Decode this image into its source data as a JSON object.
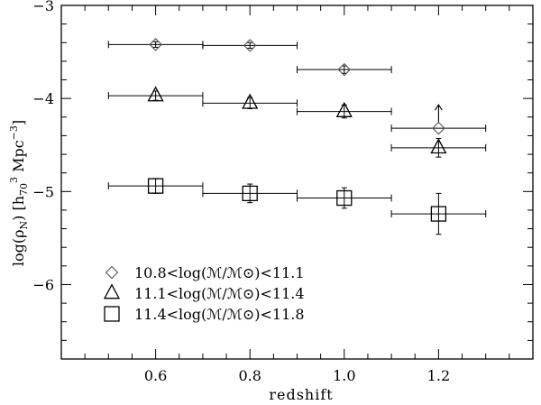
{
  "chart_data": {
    "type": "scatter",
    "xlabel": "redshift",
    "ylabel": "log(ρ_N)  [h₇₀³ Mpc⁻³]",
    "ylabel_parts": {
      "open": "log(ρ",
      "sub": "N",
      "mid": ")   [h",
      "sub2": "70",
      "sup": "3",
      "unit": " Mpc",
      "sup2": "−3",
      "close": "]"
    },
    "xlim": [
      0.4,
      1.4
    ],
    "ylim": [
      -6.8,
      -3.0
    ],
    "xticks": [
      0.6,
      0.8,
      1.0,
      1.2
    ],
    "xtick_labels": [
      "0.6",
      "0.8",
      "1.0",
      "1.2"
    ],
    "yticks": [
      -3,
      -4,
      -5,
      -6
    ],
    "ytick_labels": [
      "−3",
      "−4",
      "−5",
      "−6"
    ],
    "grid": false,
    "legend_position": "bottom-left",
    "series": [
      {
        "name": "10.8<log(ℳ/ℳ⊙)<11.1",
        "marker": "diamond",
        "x": [
          0.6,
          0.8,
          1.0,
          1.2
        ],
        "xerr_low": [
          0.1,
          0.1,
          0.1,
          0.1
        ],
        "xerr_high": [
          0.1,
          0.1,
          0.1,
          0.1
        ],
        "y": [
          -3.42,
          -3.43,
          -3.69,
          -4.32
        ],
        "yerr": [
          0.03,
          0.03,
          0.04,
          0.0
        ],
        "lower_limit": [
          false,
          false,
          false,
          true
        ]
      },
      {
        "name": "11.1<log(ℳ/ℳ⊙)<11.4",
        "marker": "triangle",
        "x": [
          0.6,
          0.8,
          1.0,
          1.2
        ],
        "xerr_low": [
          0.1,
          0.1,
          0.1,
          0.1
        ],
        "xerr_high": [
          0.1,
          0.1,
          0.1,
          0.1
        ],
        "y": [
          -3.97,
          -4.05,
          -4.14,
          -4.53
        ],
        "yerr": [
          0.05,
          0.06,
          0.07,
          0.1
        ],
        "lower_limit": [
          false,
          false,
          false,
          false
        ]
      },
      {
        "name": "11.4<log(ℳ/ℳ⊙)<11.8",
        "marker": "square",
        "x": [
          0.6,
          0.8,
          1.0,
          1.2
        ],
        "xerr_low": [
          0.1,
          0.1,
          0.1,
          0.1
        ],
        "xerr_high": [
          0.1,
          0.1,
          0.1,
          0.1
        ],
        "y": [
          -4.94,
          -5.02,
          -5.07,
          -5.24
        ],
        "yerr": [
          0.08,
          0.1,
          0.11,
          0.22
        ],
        "lower_limit": [
          false,
          false,
          false,
          false
        ]
      }
    ],
    "colors": {
      "ink": "#000000",
      "diamond": "#555555",
      "background": "#ffffff"
    }
  }
}
